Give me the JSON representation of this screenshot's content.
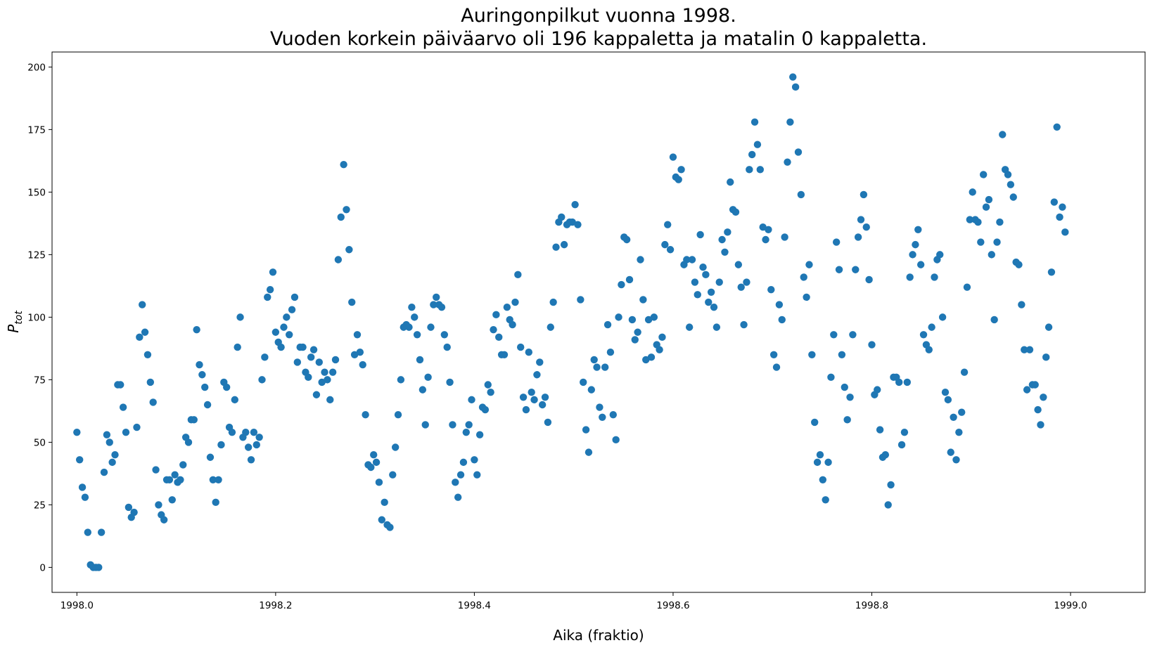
{
  "chart_data": {
    "type": "scatter",
    "title": "Auringonpilkut vuonna 1998.",
    "subtitle": "Vuoden korkein päiväarvo oli 196 kappaletta ja matalin 0 kappaletta.",
    "xlabel": "Aika (fraktio)",
    "ylabel": "P",
    "ylabel_subscript": "tot",
    "xlim": [
      1997.975,
      1999.075
    ],
    "ylim": [
      -10,
      206
    ],
    "xticks": [
      1998.0,
      1998.2,
      1998.4,
      1998.6,
      1998.8,
      1999.0
    ],
    "xtick_labels": [
      "1998.0",
      "1998.2",
      "1998.4",
      "1998.6",
      "1998.8",
      "1999.0"
    ],
    "yticks": [
      0,
      25,
      50,
      75,
      100,
      125,
      150,
      175,
      200
    ],
    "ytick_labels": [
      "0",
      "25",
      "50",
      "75",
      "100",
      "125",
      "150",
      "175",
      "200"
    ],
    "grid": false,
    "marker_color": "#1f77b4",
    "series": [
      {
        "x_start": 1998.0,
        "x_step": 0.0027397,
        "values": [
          54,
          43,
          32,
          28,
          14,
          1,
          0,
          0,
          0,
          14,
          38,
          53,
          50,
          42,
          45,
          73,
          73,
          64,
          54,
          24,
          20,
          22,
          56,
          92,
          105,
          94,
          85,
          74,
          66,
          39,
          25,
          21,
          19,
          35,
          35,
          27,
          37,
          34,
          35,
          41,
          52,
          50,
          59,
          59,
          95,
          81,
          77,
          72,
          65,
          44,
          35,
          26,
          35,
          49,
          74,
          72,
          56,
          54,
          67,
          88,
          100,
          52,
          54,
          48,
          43,
          54,
          49,
          52,
          75,
          84,
          108,
          111,
          118,
          94,
          90,
          88,
          96,
          100,
          93,
          103,
          108,
          82,
          88,
          88,
          78,
          76,
          84,
          87,
          69,
          82,
          74,
          78,
          75,
          67,
          78,
          83,
          123,
          140,
          161,
          143,
          127,
          106,
          85,
          93,
          86,
          81,
          61,
          41,
          40,
          45,
          42,
          34,
          19,
          26,
          17,
          16,
          37,
          48,
          61,
          75,
          96,
          97,
          96,
          104,
          100,
          93,
          83,
          71,
          57,
          76,
          96,
          105,
          108,
          105,
          104,
          93,
          88,
          74,
          57,
          34,
          28,
          37,
          42,
          54,
          57,
          67,
          43,
          37,
          53,
          64,
          63,
          73,
          70,
          95,
          101,
          92,
          85,
          85,
          104,
          99,
          97,
          106,
          117,
          88,
          68,
          63,
          86,
          70,
          67,
          77,
          82,
          65,
          68,
          58,
          96,
          106,
          128,
          138,
          140,
          129,
          137,
          138,
          138,
          145,
          137,
          107,
          74,
          55,
          46,
          71,
          83,
          80,
          64,
          60,
          80,
          97,
          86,
          61,
          51,
          100,
          113,
          132,
          131,
          115,
          99,
          91,
          94,
          123,
          107,
          83,
          99,
          84,
          100,
          89,
          87,
          92,
          129,
          137,
          127,
          164,
          156,
          155,
          159,
          121,
          123,
          96,
          123,
          114,
          109,
          133,
          120,
          117,
          106,
          110,
          104,
          96,
          114,
          131,
          126,
          134,
          154,
          143,
          142,
          121,
          112,
          97,
          114,
          159,
          165,
          178,
          169,
          159,
          136,
          131,
          135,
          111,
          85,
          80,
          105,
          99,
          132,
          162,
          178,
          196,
          192,
          166,
          149,
          116,
          108,
          121,
          85,
          58,
          42,
          45,
          35,
          27,
          42,
          76,
          93,
          130,
          119,
          85,
          72,
          59,
          68,
          93,
          119,
          132,
          139,
          149,
          136,
          115,
          89,
          69,
          71,
          55,
          44,
          45,
          25,
          33,
          76,
          76,
          74,
          49,
          54,
          74,
          116,
          125,
          129,
          135,
          121,
          93,
          89,
          87,
          96,
          116,
          123,
          125,
          100,
          70,
          67,
          46,
          60,
          43,
          54,
          62,
          78,
          112,
          139,
          150,
          139,
          138,
          130,
          157,
          144,
          147,
          125,
          99,
          130,
          138,
          173,
          159,
          157,
          153,
          148,
          122,
          121,
          105,
          87,
          71,
          87,
          73,
          73,
          63,
          57,
          68,
          84,
          96,
          118,
          146,
          176,
          140,
          144,
          134
        ]
      }
    ]
  }
}
